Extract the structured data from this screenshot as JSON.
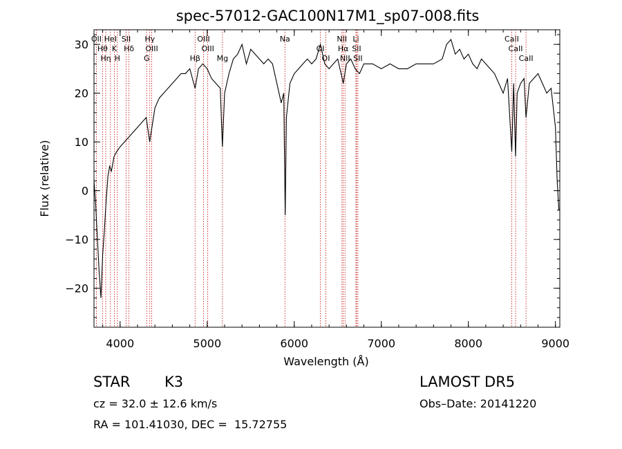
{
  "chart_data": {
    "type": "line",
    "title": "spec-57012-GAC100N17M1_sp07-008.fits",
    "xlabel": "Wavelength (Å)",
    "ylabel": "Flux (relative)",
    "xlim": [
      3700,
      9050
    ],
    "ylim": [
      -28,
      33
    ],
    "xticks": [
      4000,
      5000,
      6000,
      7000,
      8000,
      9000
    ],
    "yticks": [
      -20,
      -10,
      0,
      10,
      20,
      30
    ],
    "grid": false,
    "series": [
      {
        "x": [
          3700,
          3720,
          3740,
          3760,
          3780,
          3800,
          3820,
          3840,
          3860,
          3880,
          3900,
          3930,
          3960,
          4000,
          4050,
          4100,
          4150,
          4200,
          4250,
          4300,
          4340,
          4400,
          4450,
          4500,
          4550,
          4600,
          4650,
          4700,
          4750,
          4800,
          4861,
          4900,
          4950,
          5000,
          5050,
          5100,
          5150,
          5175,
          5200,
          5250,
          5300,
          5350,
          5400,
          5450,
          5500,
          5550,
          5600,
          5650,
          5700,
          5750,
          5800,
          5850,
          5880,
          5890,
          5896,
          5910,
          5950,
          6000,
          6050,
          6100,
          6150,
          6200,
          6250,
          6300,
          6350,
          6400,
          6450,
          6500,
          6563,
          6600,
          6650,
          6700,
          6750,
          6800,
          6900,
          7000,
          7100,
          7200,
          7300,
          7400,
          7500,
          7600,
          7700,
          7750,
          7800,
          7850,
          7900,
          7950,
          8000,
          8050,
          8100,
          8150,
          8200,
          8250,
          8300,
          8350,
          8400,
          8450,
          8498,
          8520,
          8542,
          8560,
          8600,
          8640,
          8662,
          8700,
          8750,
          8800,
          8850,
          8900,
          8950,
          9000,
          9020,
          9040
        ],
        "values": [
          2,
          -3,
          -10,
          -17,
          -22,
          -13,
          -8,
          -2,
          3,
          5,
          4,
          7,
          8,
          9,
          10,
          11,
          12,
          13,
          14,
          15,
          10,
          17,
          19,
          20,
          21,
          22,
          23,
          24,
          24,
          25,
          21,
          25,
          26,
          25,
          23,
          22,
          21,
          9,
          20,
          24,
          27,
          28,
          30,
          26,
          29,
          28,
          27,
          26,
          27,
          26,
          22,
          18,
          20,
          4,
          -5,
          15,
          22,
          24,
          25,
          26,
          27,
          26,
          27,
          30,
          26,
          25,
          26,
          27,
          22,
          26,
          27,
          25,
          24,
          26,
          26,
          25,
          26,
          25,
          25,
          26,
          26,
          26,
          27,
          30,
          31,
          28,
          29,
          27,
          28,
          26,
          25,
          27,
          26,
          25,
          24,
          22,
          20,
          23,
          8,
          22,
          7,
          20,
          22,
          23,
          15,
          22,
          23,
          24,
          22,
          20,
          21,
          13,
          2,
          -4
        ]
      }
    ],
    "lines": [
      {
        "label": "OII",
        "x": 3727
      },
      {
        "label": "Hθ",
        "x": 3798
      },
      {
        "label": "Hη",
        "x": 3835
      },
      {
        "label": "HeI",
        "x": 3889
      },
      {
        "label": "K",
        "x": 3934
      },
      {
        "label": "H",
        "x": 3968
      },
      {
        "label": "SII",
        "x": 4069
      },
      {
        "label": "Hδ",
        "x": 4102
      },
      {
        "label": "G",
        "x": 4305
      },
      {
        "label": "Hγ",
        "x": 4341
      },
      {
        "label": "OIII",
        "x": 4363
      },
      {
        "label": "Hβ",
        "x": 4861
      },
      {
        "label": "OIII",
        "x": 4959
      },
      {
        "label": "OIII",
        "x": 5007
      },
      {
        "label": "Mg",
        "x": 5175
      },
      {
        "label": "Na",
        "x": 5893
      },
      {
        "label": "OI",
        "x": 6300
      },
      {
        "label": "OI",
        "x": 6363
      },
      {
        "label": "NII",
        "x": 6548
      },
      {
        "label": "Hα",
        "x": 6563
      },
      {
        "label": "NII",
        "x": 6583
      },
      {
        "label": "Li",
        "x": 6708
      },
      {
        "label": "SII",
        "x": 6716
      },
      {
        "label": "SII",
        "x": 6731
      },
      {
        "label": "CaII",
        "x": 8498
      },
      {
        "label": "CaII",
        "x": 8542
      },
      {
        "label": "CaII",
        "x": 8662
      }
    ]
  },
  "info": {
    "class_text": "STAR",
    "subclass_text": "K3",
    "survey_text": "LAMOST DR5",
    "cz_text": "cz = 32.0 ± 12.6 km/s",
    "obsdate_text": "Obs–Date: 20141220",
    "coord_text": "RA = 101.41030, DEC =  15.72755"
  }
}
